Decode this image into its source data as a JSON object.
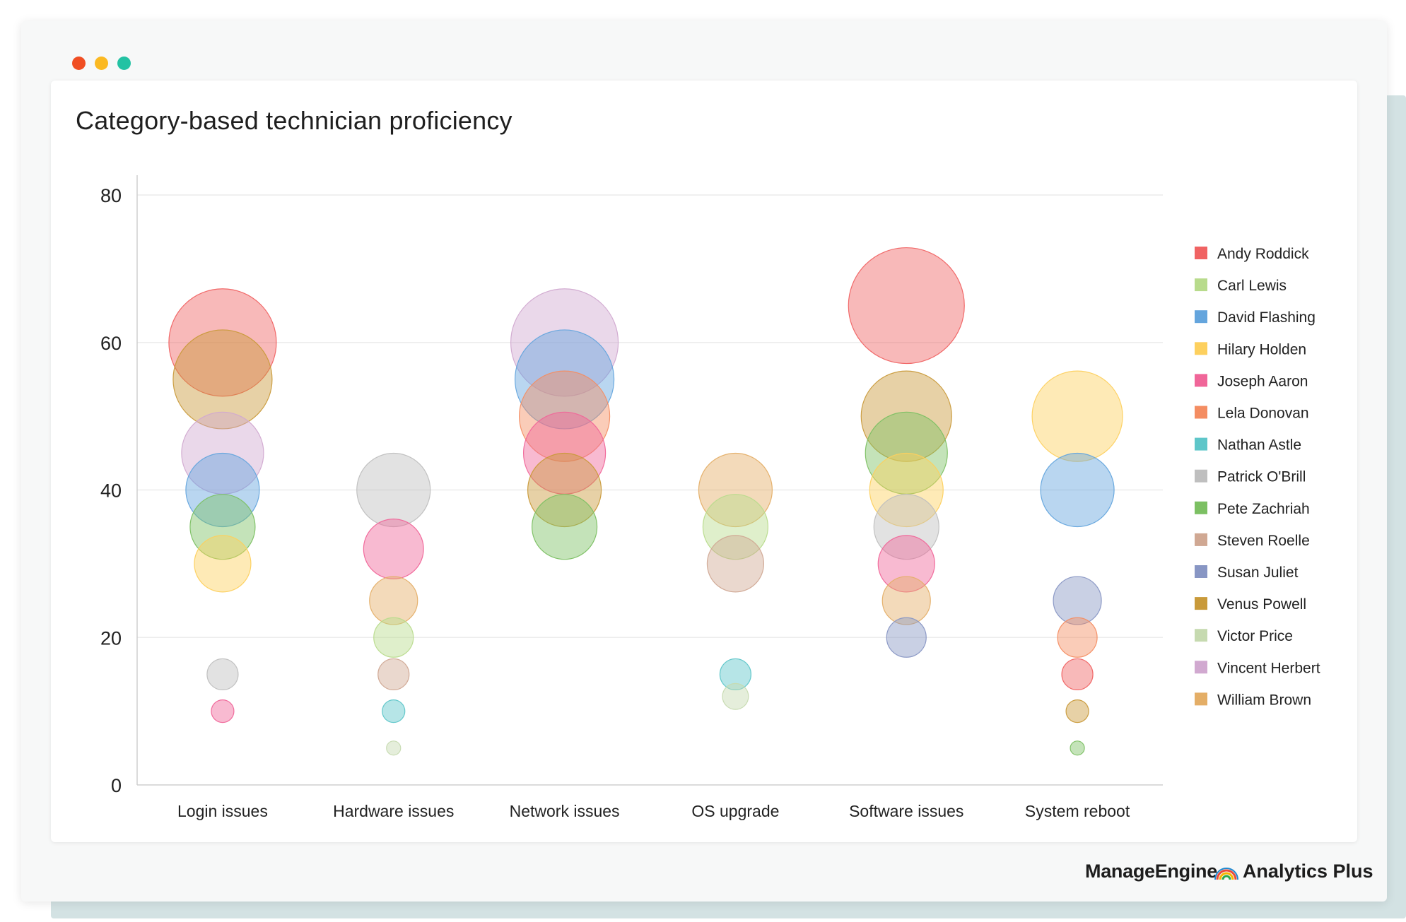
{
  "brand": {
    "name_main": "ManageEngine",
    "name_product": "Analytics Plus",
    "icon": "rainbow-arc-icon"
  },
  "colors": {
    "Andy Roddick": "#f06363",
    "Carl Lewis": "#b8db8c",
    "David Flashing": "#64a5dd",
    "Hilary Holden": "#fdd05e",
    "Joseph Aaron": "#f06699",
    "Lela Donovan": "#f48d62",
    "Nathan Astle": "#5ec6c9",
    "Patrick O'Brill": "#bfbfbf",
    "Pete Zachriah": "#7cc063",
    "Steven Roelle": "#d0a893",
    "Susan Juliet": "#8896c4",
    "Venus Powell": "#c99a3a",
    "Victor Price": "#c6dab0",
    "Vincent Herbert": "#d1a9d0",
    "William Brown": "#e4ae67"
  },
  "chart_data": {
    "type": "bubble",
    "title": "Category-based technician proficiency",
    "xlabel": "",
    "ylabel": "",
    "ylim": [
      0,
      80
    ],
    "yticks": [
      0,
      20,
      40,
      60,
      80
    ],
    "grid": true,
    "legend_position": "right",
    "categories": [
      "Login issues",
      "Hardware issues",
      "Network issues",
      "OS upgrade",
      "Software issues",
      "System reboot"
    ],
    "legend": [
      "Andy Roddick",
      "Carl Lewis",
      "David Flashing",
      "Hilary Holden",
      "Joseph Aaron",
      "Lela Donovan",
      "Nathan Astle",
      "Patrick O'Brill",
      "Pete Zachriah",
      "Steven Roelle",
      "Susan Juliet",
      "Venus Powell",
      "Victor Price",
      "Vincent Herbert",
      "William Brown"
    ],
    "points": [
      {
        "category": "Login issues",
        "series": "Andy Roddick",
        "y": 60,
        "size": 60
      },
      {
        "category": "Login issues",
        "series": "Venus Powell",
        "y": 55,
        "size": 55
      },
      {
        "category": "Login issues",
        "series": "Vincent Herbert",
        "y": 45,
        "size": 45
      },
      {
        "category": "Login issues",
        "series": "David Flashing",
        "y": 40,
        "size": 40
      },
      {
        "category": "Login issues",
        "series": "Pete Zachriah",
        "y": 35,
        "size": 35
      },
      {
        "category": "Login issues",
        "series": "Hilary Holden",
        "y": 30,
        "size": 30
      },
      {
        "category": "Login issues",
        "series": "Patrick O'Brill",
        "y": 15,
        "size": 15
      },
      {
        "category": "Login issues",
        "series": "Joseph Aaron",
        "y": 10,
        "size": 10
      },
      {
        "category": "Hardware issues",
        "series": "Patrick O'Brill",
        "y": 40,
        "size": 40
      },
      {
        "category": "Hardware issues",
        "series": "Joseph Aaron",
        "y": 32,
        "size": 32
      },
      {
        "category": "Hardware issues",
        "series": "William Brown",
        "y": 25,
        "size": 25
      },
      {
        "category": "Hardware issues",
        "series": "Carl Lewis",
        "y": 20,
        "size": 20
      },
      {
        "category": "Hardware issues",
        "series": "Steven Roelle",
        "y": 15,
        "size": 15
      },
      {
        "category": "Hardware issues",
        "series": "Nathan Astle",
        "y": 10,
        "size": 10
      },
      {
        "category": "Hardware issues",
        "series": "Victor Price",
        "y": 5,
        "size": 5
      },
      {
        "category": "Network issues",
        "series": "Vincent Herbert",
        "y": 60,
        "size": 60
      },
      {
        "category": "Network issues",
        "series": "David Flashing",
        "y": 55,
        "size": 55
      },
      {
        "category": "Network issues",
        "series": "Lela Donovan",
        "y": 50,
        "size": 50
      },
      {
        "category": "Network issues",
        "series": "Joseph Aaron",
        "y": 45,
        "size": 45
      },
      {
        "category": "Network issues",
        "series": "Venus Powell",
        "y": 40,
        "size": 40
      },
      {
        "category": "Network issues",
        "series": "Pete Zachriah",
        "y": 35,
        "size": 35
      },
      {
        "category": "OS upgrade",
        "series": "William Brown",
        "y": 40,
        "size": 40
      },
      {
        "category": "OS upgrade",
        "series": "Carl Lewis",
        "y": 35,
        "size": 35
      },
      {
        "category": "OS upgrade",
        "series": "Steven Roelle",
        "y": 30,
        "size": 30
      },
      {
        "category": "OS upgrade",
        "series": "Nathan Astle",
        "y": 15,
        "size": 15
      },
      {
        "category": "OS upgrade",
        "series": "Victor Price",
        "y": 12,
        "size": 12
      },
      {
        "category": "Software issues",
        "series": "Andy Roddick",
        "y": 65,
        "size": 65
      },
      {
        "category": "Software issues",
        "series": "Venus Powell",
        "y": 50,
        "size": 50
      },
      {
        "category": "Software issues",
        "series": "Pete Zachriah",
        "y": 45,
        "size": 45
      },
      {
        "category": "Software issues",
        "series": "Hilary Holden",
        "y": 40,
        "size": 40
      },
      {
        "category": "Software issues",
        "series": "Patrick O'Brill",
        "y": 35,
        "size": 35
      },
      {
        "category": "Software issues",
        "series": "Joseph Aaron",
        "y": 30,
        "size": 30
      },
      {
        "category": "Software issues",
        "series": "William Brown",
        "y": 25,
        "size": 25
      },
      {
        "category": "Software issues",
        "series": "Susan Juliet",
        "y": 20,
        "size": 20
      },
      {
        "category": "System reboot",
        "series": "Hilary Holden",
        "y": 50,
        "size": 50
      },
      {
        "category": "System reboot",
        "series": "David Flashing",
        "y": 40,
        "size": 40
      },
      {
        "category": "System reboot",
        "series": "Susan Juliet",
        "y": 25,
        "size": 25
      },
      {
        "category": "System reboot",
        "series": "Lela Donovan",
        "y": 20,
        "size": 20
      },
      {
        "category": "System reboot",
        "series": "Andy Roddick",
        "y": 15,
        "size": 15
      },
      {
        "category": "System reboot",
        "series": "Venus Powell",
        "y": 10,
        "size": 10
      },
      {
        "category": "System reboot",
        "series": "Pete Zachriah",
        "y": 5,
        "size": 5
      }
    ]
  }
}
